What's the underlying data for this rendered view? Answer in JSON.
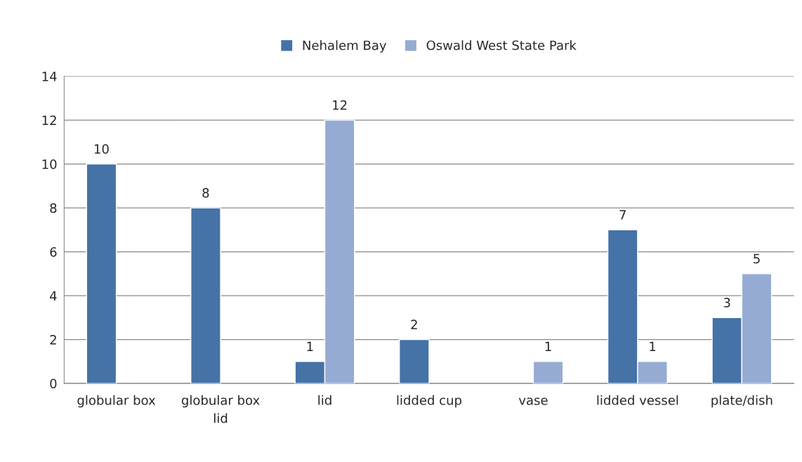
{
  "chart_data": {
    "type": "bar",
    "categories": [
      "globular box",
      "globular box\nlid",
      "lid",
      "lidded cup",
      "vase",
      "lidded vessel",
      "plate/dish"
    ],
    "series": [
      {
        "name": "Nehalem Bay",
        "color": "#4572a7",
        "values": [
          10,
          8,
          1,
          2,
          null,
          7,
          3
        ]
      },
      {
        "name": "Oswald West State Park",
        "color": "#95abd3",
        "values": [
          null,
          null,
          12,
          null,
          1,
          1,
          5
        ]
      }
    ],
    "ylim": [
      0,
      14
    ],
    "yticks": [
      0,
      2,
      4,
      6,
      8,
      10,
      12,
      14
    ],
    "grid": "y",
    "legend": "top",
    "data_labels": true
  }
}
